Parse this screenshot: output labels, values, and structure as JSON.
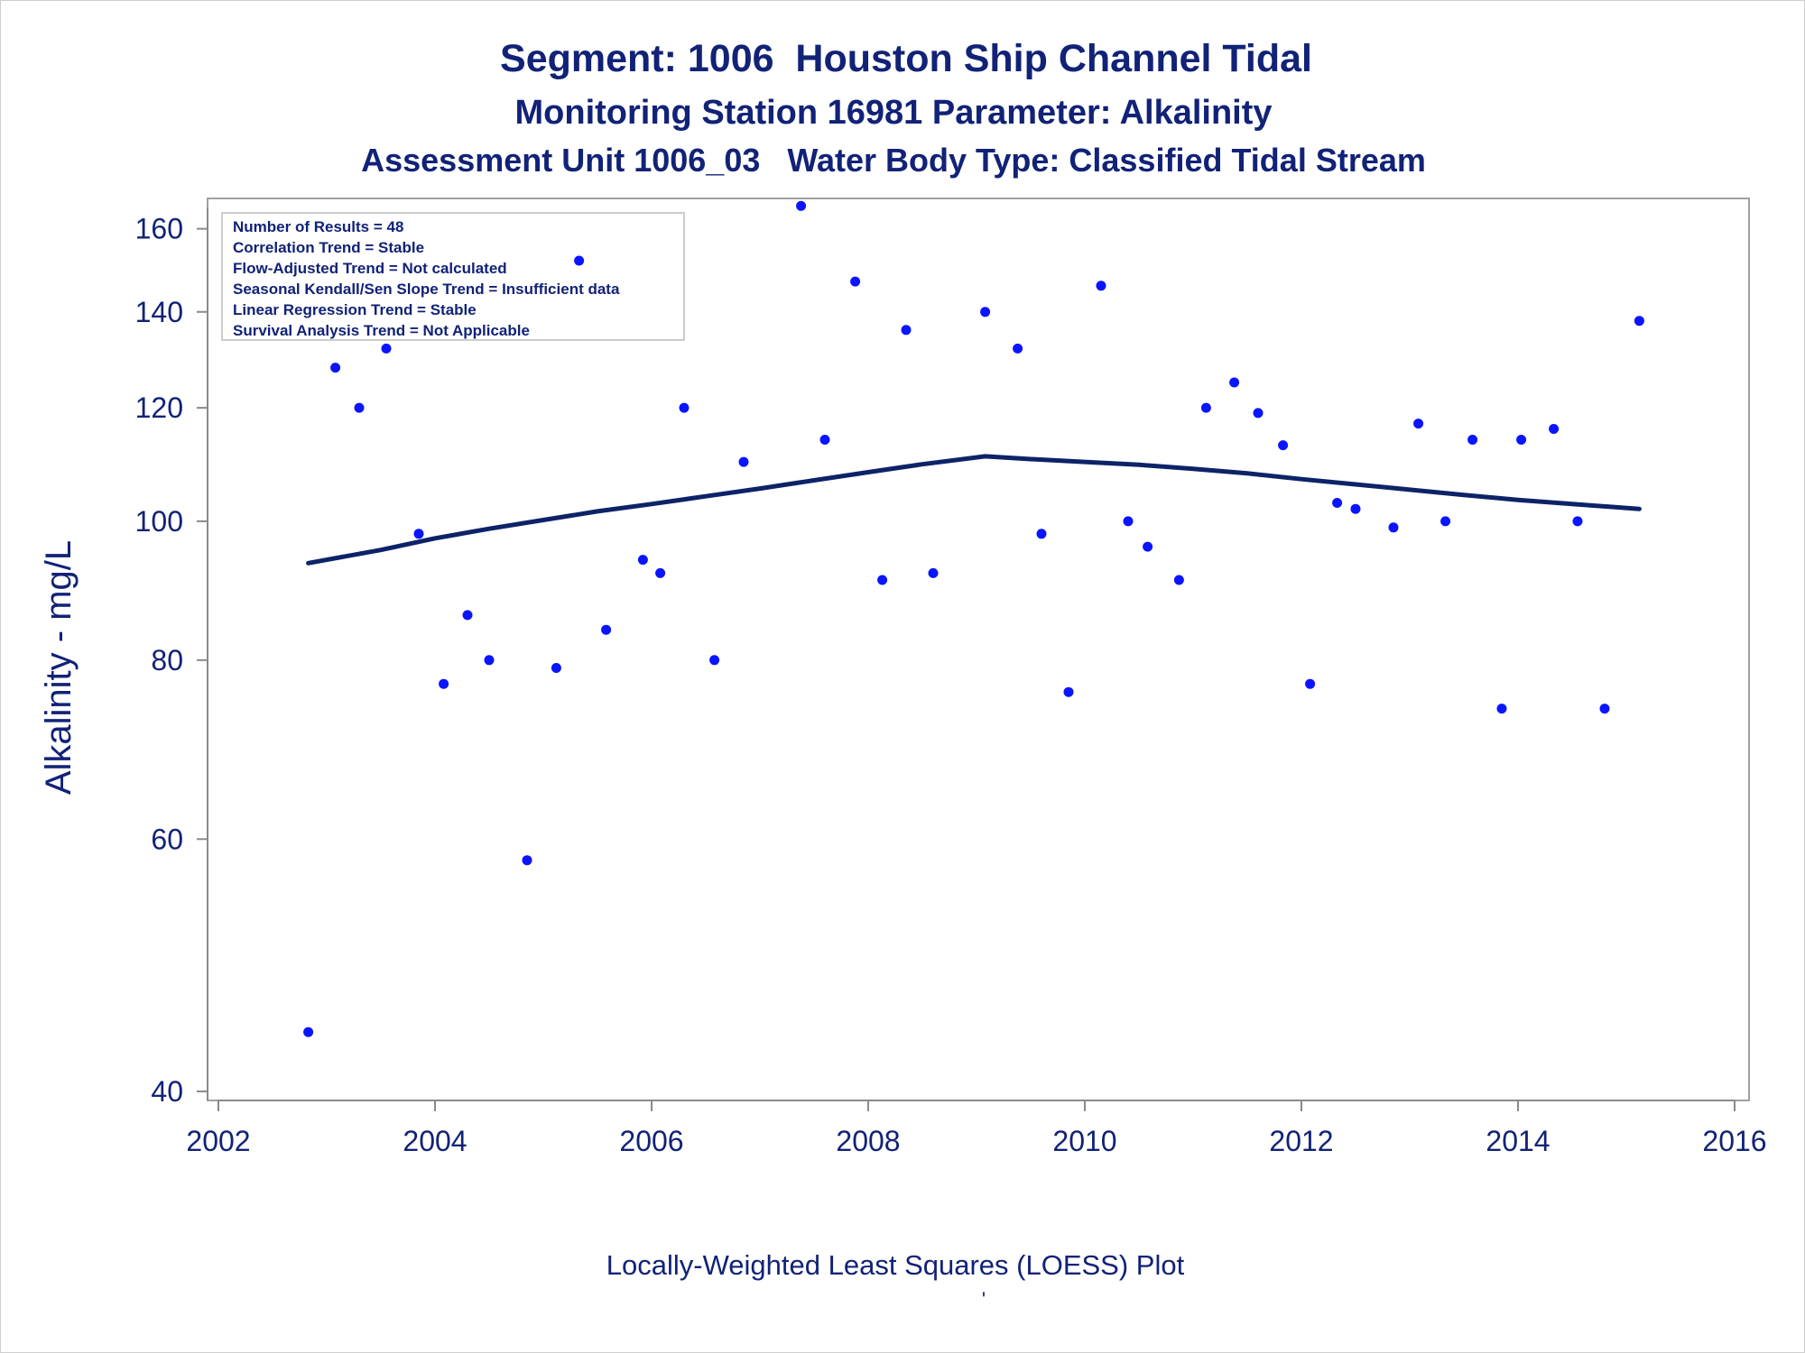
{
  "chart_data": {
    "type": "scatter",
    "title": "Segment: 1006  Houston Ship Channel Tidal",
    "subtitle": "Monitoring Station 16981 Parameter: Alkalinity",
    "subtitle2": "Assessment Unit 1006_03   Water Body Type: Classified Tidal Stream",
    "xlabel": "",
    "ylabel": "Alkalinity - mg/L",
    "footnote": "Locally-Weighted Least Squares (LOESS) Plot",
    "footnote_mark": "'",
    "x_scale": "linear",
    "y_scale": "log",
    "xlim": [
      2002,
      2016
    ],
    "ylim": [
      40,
      168
    ],
    "x_ticks": [
      2002,
      2004,
      2006,
      2008,
      2010,
      2012,
      2014,
      2016
    ],
    "x_tick_labels": [
      "2002",
      "2004",
      "2006",
      "2008",
      "2010",
      "2012",
      "2014",
      "2016"
    ],
    "y_ticks": [
      40,
      60,
      80,
      100,
      120,
      140,
      160
    ],
    "y_tick_labels": [
      "40",
      "60",
      "80",
      "100",
      "120",
      "140",
      "160"
    ],
    "grid": false,
    "legend": "none",
    "stats_box": {
      "placement": "top-left",
      "lines": [
        "Number of Results = 48",
        "Correlation Trend = Stable",
        "Flow-Adjusted Trend = Not calculated",
        "Seasonal Kendall/Sen Slope Trend = Insufficient data",
        "Linear Regression Trend = Stable",
        "Survival Analysis Trend = Not Applicable"
      ]
    },
    "series": [
      {
        "type": "scatter",
        "color": "#0a14ff",
        "points": [
          [
            2002.83,
            44
          ],
          [
            2003.08,
            128
          ],
          [
            2003.3,
            120
          ],
          [
            2003.55,
            132
          ],
          [
            2003.85,
            98
          ],
          [
            2004.08,
            77
          ],
          [
            2004.3,
            86
          ],
          [
            2004.5,
            80
          ],
          [
            2004.85,
            58
          ],
          [
            2005.12,
            79
          ],
          [
            2005.33,
            152
          ],
          [
            2005.58,
            84
          ],
          [
            2005.92,
            94
          ],
          [
            2006.08,
            92
          ],
          [
            2006.3,
            120
          ],
          [
            2006.58,
            80
          ],
          [
            2006.85,
            110
          ],
          [
            2007.38,
            166
          ],
          [
            2007.6,
            114
          ],
          [
            2007.88,
            147
          ],
          [
            2008.13,
            91
          ],
          [
            2008.35,
            136
          ],
          [
            2008.6,
            92
          ],
          [
            2009.08,
            140
          ],
          [
            2009.38,
            132
          ],
          [
            2009.6,
            98
          ],
          [
            2009.85,
            76
          ],
          [
            2010.15,
            146
          ],
          [
            2010.4,
            100
          ],
          [
            2010.58,
            96
          ],
          [
            2010.87,
            91
          ],
          [
            2011.12,
            120
          ],
          [
            2011.38,
            125
          ],
          [
            2011.6,
            119
          ],
          [
            2011.83,
            113
          ],
          [
            2012.08,
            77
          ],
          [
            2012.33,
            103
          ],
          [
            2012.5,
            102
          ],
          [
            2012.85,
            99
          ],
          [
            2013.08,
            117
          ],
          [
            2013.33,
            100
          ],
          [
            2013.58,
            114
          ],
          [
            2013.85,
            74
          ],
          [
            2014.03,
            114
          ],
          [
            2014.33,
            116
          ],
          [
            2014.55,
            100
          ],
          [
            2014.8,
            74
          ],
          [
            2015.12,
            138
          ]
        ]
      },
      {
        "type": "line",
        "name": "LOESS",
        "color": "#0d2368",
        "points": [
          [
            2002.83,
            93.5
          ],
          [
            2003.5,
            95.5
          ],
          [
            2004.0,
            97.3
          ],
          [
            2004.5,
            98.8
          ],
          [
            2005.0,
            100.2
          ],
          [
            2005.5,
            101.6
          ],
          [
            2006.0,
            102.8
          ],
          [
            2006.5,
            104.1
          ],
          [
            2007.0,
            105.4
          ],
          [
            2007.5,
            106.8
          ],
          [
            2008.0,
            108.2
          ],
          [
            2008.5,
            109.6
          ],
          [
            2009.08,
            111.0
          ],
          [
            2009.5,
            110.5
          ],
          [
            2010.0,
            110.0
          ],
          [
            2010.5,
            109.5
          ],
          [
            2011.0,
            108.8
          ],
          [
            2011.5,
            108.0
          ],
          [
            2012.0,
            107.0
          ],
          [
            2012.5,
            106.1
          ],
          [
            2013.0,
            105.2
          ],
          [
            2013.5,
            104.3
          ],
          [
            2014.0,
            103.5
          ],
          [
            2014.5,
            102.8
          ],
          [
            2015.12,
            102.0
          ]
        ]
      }
    ]
  }
}
